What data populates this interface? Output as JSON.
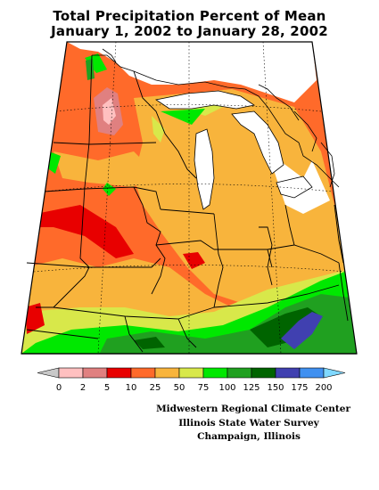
{
  "title": {
    "line1": "Total Precipitation Percent of Mean",
    "line2": "January 1, 2002 to January 28, 2002"
  },
  "legend": {
    "ticks": [
      "0",
      "2",
      "5",
      "10",
      "25",
      "50",
      "75",
      "100",
      "125",
      "150",
      "175",
      "200"
    ],
    "colors": [
      "#c8c8c8",
      "#ffc0c0",
      "#e08080",
      "#e80000",
      "#ff6a2a",
      "#f8b43c",
      "#d8e84a",
      "#00e800",
      "#20a020",
      "#006400",
      "#4040b0",
      "#4090f0",
      "#80d8ff"
    ]
  },
  "credits": {
    "line1": "Midwestern Regional Climate Center",
    "line2": "Illinois State Water Survey",
    "line3": "Champaign, Illinois"
  },
  "colors": {
    "lakes": "#ffffff",
    "borders": "#000000",
    "frame": "#000000"
  }
}
